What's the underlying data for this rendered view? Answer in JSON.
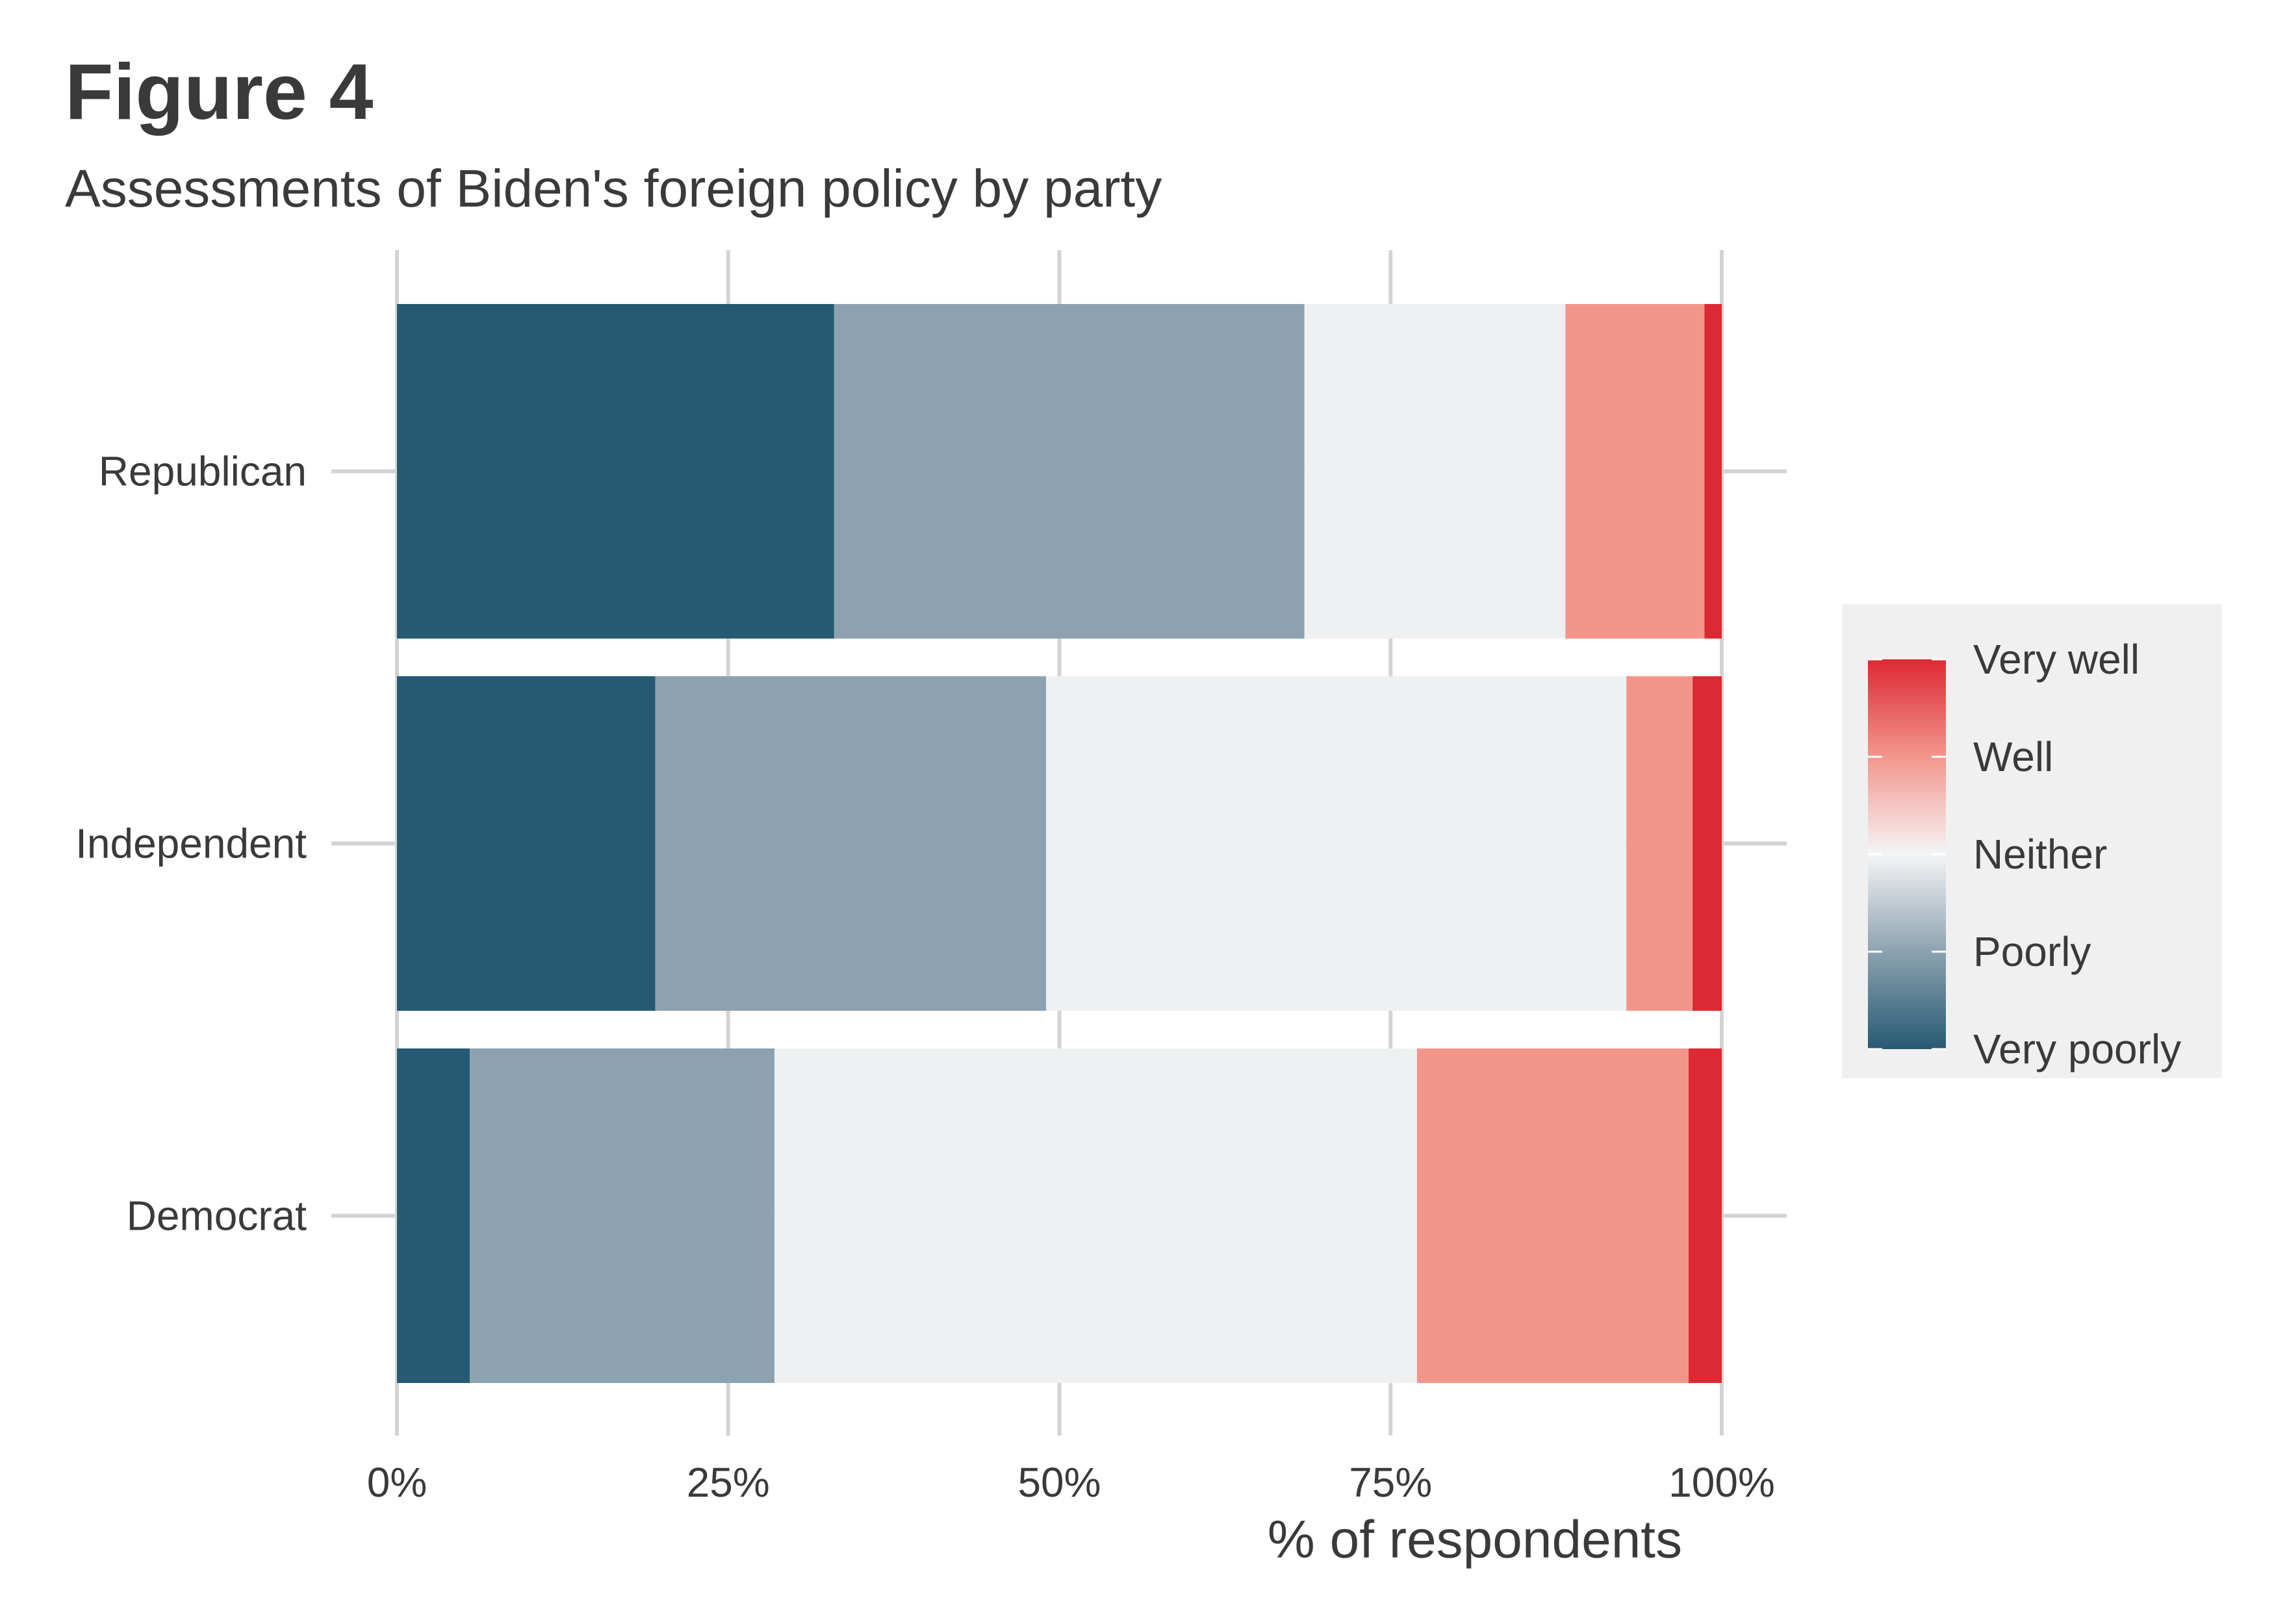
{
  "header": {
    "title": "Figure 4",
    "subtitle": "Assessments of Biden's foreign policy by party"
  },
  "chart_data": {
    "type": "bar",
    "orientation": "horizontal",
    "stacked": true,
    "title": "Figure 4",
    "subtitle": "Assessments of Biden's foreign policy by party",
    "xlabel": "% of respondents",
    "ylabel": "",
    "xlim": [
      0,
      100
    ],
    "x_ticks": [
      0,
      25,
      50,
      75,
      100
    ],
    "x_tick_labels": [
      "0%",
      "25%",
      "50%",
      "75%",
      "100%"
    ],
    "categories": [
      "Republican",
      "Independent",
      "Democrat"
    ],
    "series": [
      {
        "name": "Very poorly",
        "color": "#265a72",
        "values": [
          33.0,
          19.5,
          5.5
        ]
      },
      {
        "name": "Poorly",
        "color": "#8ca2b0",
        "values": [
          35.5,
          29.5,
          23.0
        ]
      },
      {
        "name": "Neither",
        "color": "#eff0f1",
        "values": [
          19.7,
          43.8,
          48.5
        ]
      },
      {
        "name": "Well",
        "color": "#f2968c",
        "values": [
          10.5,
          5.0,
          20.5
        ]
      },
      {
        "name": "Very well",
        "color": "#dd2934",
        "values": [
          1.3,
          2.2,
          2.5
        ]
      }
    ],
    "grid": true,
    "legend": {
      "position": "right",
      "type": "gradient",
      "labels": [
        "Very well",
        "Well",
        "Neither",
        "Poorly",
        "Very poorly"
      ],
      "colors": [
        "#dd2934",
        "#f2968c",
        "#f5f5f6",
        "#8ca2b0",
        "#265a72"
      ]
    }
  }
}
